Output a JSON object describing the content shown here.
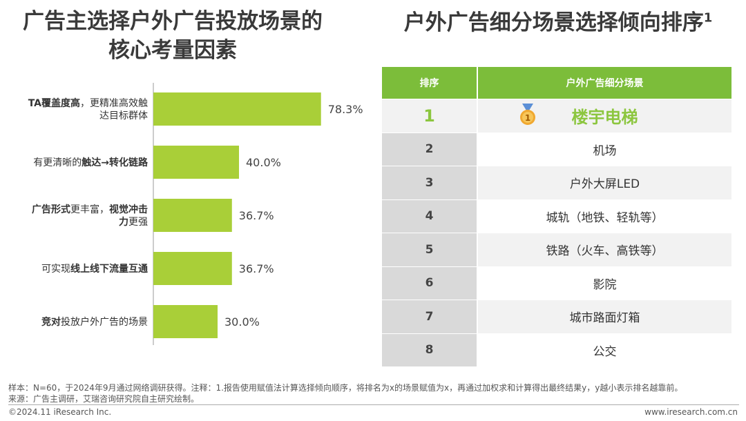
{
  "left_title_line1": "广告主选择户外广告投放场景的",
  "left_title_line2": "核心考量因素",
  "right_title": "户外广告细分场景选择倾向排序",
  "right_title_sup": "1",
  "chart_data": {
    "type": "bar",
    "orientation": "horizontal",
    "title": "广告主选择户外广告投放场景的核心考量因素",
    "categories": [
      "TA覆盖度高，更精准高效触达目标群体",
      "有更清晰的触达→转化链路",
      "广告形式更丰富，视觉冲击力更强",
      "可实现线上线下流量互通",
      "竞对投放户外广告的场景"
    ],
    "values": [
      78.3,
      40.0,
      36.7,
      36.7,
      30.0
    ],
    "value_labels": [
      "78.3%",
      "40.0%",
      "36.7%",
      "36.7%",
      "30.0%"
    ],
    "unit": "%",
    "xlim": [
      0,
      100
    ],
    "color": "#a9cf38",
    "label_lines": [
      [
        [
          {
            "t": "TA覆盖度高",
            "b": true
          },
          {
            "t": "，更精准高效触",
            "b": false
          }
        ],
        [
          {
            "t": "达目标群体",
            "b": false
          }
        ]
      ],
      [
        [
          {
            "t": "有更清晰的",
            "b": false
          },
          {
            "t": "触达→转化链路",
            "b": true
          }
        ]
      ],
      [
        [
          {
            "t": "广告形式",
            "b": true
          },
          {
            "t": "更丰富，",
            "b": false
          },
          {
            "t": "视觉冲击",
            "b": true
          }
        ],
        [
          {
            "t": "力",
            "b": true
          },
          {
            "t": "更强",
            "b": false
          }
        ]
      ],
      [
        [
          {
            "t": "可实现",
            "b": false
          },
          {
            "t": "线上线下流量互通",
            "b": true
          }
        ]
      ],
      [
        [
          {
            "t": "竞对",
            "b": true
          },
          {
            "t": "投放户外广告的场景",
            "b": false
          }
        ]
      ]
    ]
  },
  "table": {
    "header_rank": "排序",
    "header_scene": "户外广告细分场景",
    "rows": [
      {
        "rank": "1",
        "scene": "楼宇电梯"
      },
      {
        "rank": "2",
        "scene": "机场"
      },
      {
        "rank": "3",
        "scene": "户外大屏LED"
      },
      {
        "rank": "4",
        "scene": "城轨（地铁、轻轨等）"
      },
      {
        "rank": "5",
        "scene": "铁路（火车、高铁等）"
      },
      {
        "rank": "6",
        "scene": "影院"
      },
      {
        "rank": "7",
        "scene": "城市路面灯箱"
      },
      {
        "rank": "8",
        "scene": "公交"
      }
    ]
  },
  "medal_text": "1",
  "footer_note": "样本：N=60，于2024年9月通过网络调研获得。注释：1.报告使用赋值法计算选择倾向顺序，将排名为x的场景赋值为x，再通过加权求和计算得出最终结果y，y越小表示排名越靠前。",
  "footer_source": "来源：广告主调研，艾瑞咨询研究院自主研究绘制。",
  "copyright": "©2024.11 iResearch Inc.",
  "site": "www.iresearch.com.cn",
  "colors": {
    "accent": "#7cbd3a",
    "bar": "#a9cf38",
    "top_rank": "#8cc63f"
  }
}
